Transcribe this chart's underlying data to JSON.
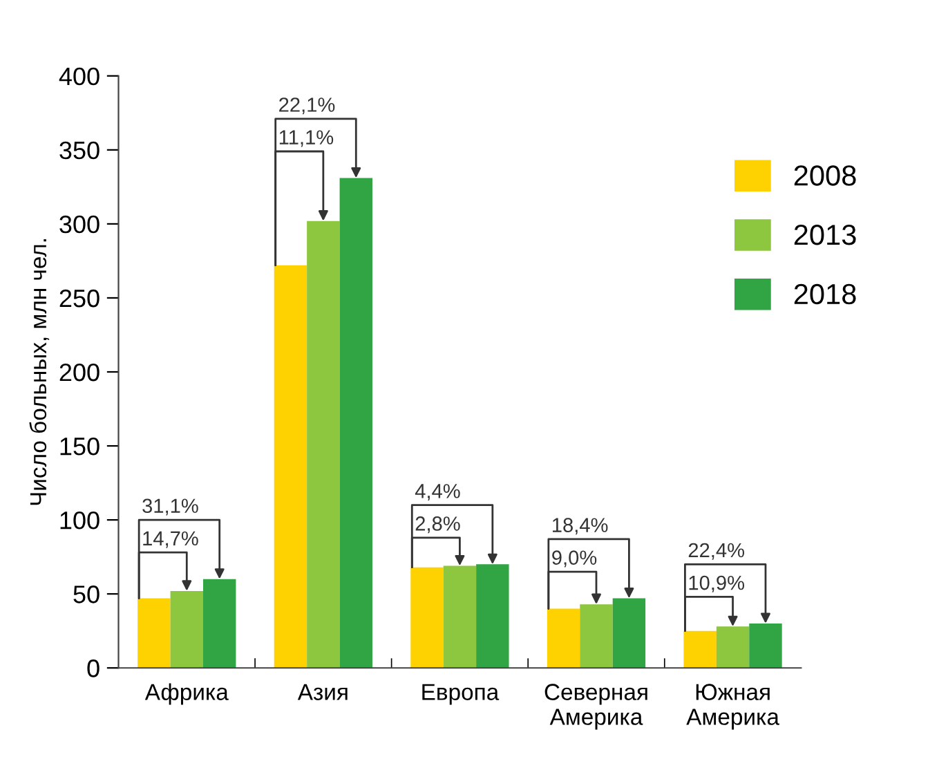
{
  "chart_data": {
    "type": "bar",
    "ylabel": "Число больных, млн чел.",
    "categories": [
      "Африка",
      "Азия",
      "Европа",
      "Северная\nАмерика",
      "Южная\nАмерика"
    ],
    "series": [
      {
        "name": "2008",
        "color": "#fdd200",
        "values": [
          47,
          272,
          68,
          40,
          25
        ]
      },
      {
        "name": "2013",
        "color": "#8dc63f",
        "values": [
          52,
          302,
          69,
          43,
          28
        ]
      },
      {
        "name": "2018",
        "color": "#31a444",
        "values": [
          60,
          331,
          70,
          47,
          30
        ]
      }
    ],
    "ylim": [
      0,
      400
    ],
    "yticks": [
      0,
      50,
      100,
      150,
      200,
      250,
      300,
      350,
      400
    ],
    "grid": false,
    "legend": "top right",
    "annotations": [
      "14,7%",
      "31,1%",
      "11,1%",
      "22,1%",
      "2,8%",
      "4,4%",
      "9,0%",
      "18,4%",
      "10,9%",
      "22,4%"
    ]
  }
}
